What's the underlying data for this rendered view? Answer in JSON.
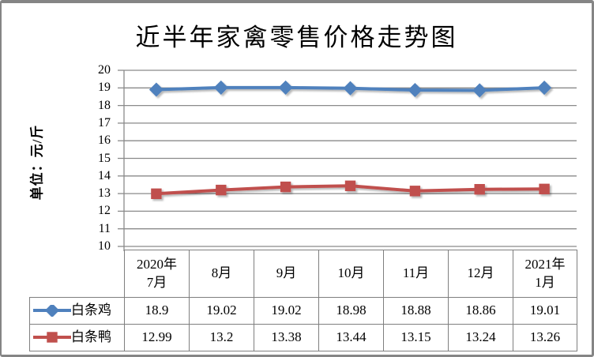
{
  "chart": {
    "title": "近半年家禽零售价格走势图",
    "y_axis_title": "单位：元/斤"
  },
  "chart_data": {
    "type": "line",
    "title": "近半年家禽零售价格走势图",
    "ylabel": "单位：元/斤",
    "xlabel": "",
    "categories": [
      "2020年\n7月",
      "8月",
      "9月",
      "10月",
      "11月",
      "12月",
      "2021年\n1月"
    ],
    "series": [
      {
        "name": "白条鸡",
        "marker": "diamond",
        "color": "#4F81BD",
        "values": [
          18.9,
          19.02,
          19.02,
          18.98,
          18.88,
          18.86,
          19.01
        ]
      },
      {
        "name": "白条鸭",
        "marker": "square",
        "color": "#C0504D",
        "values": [
          12.99,
          13.2,
          13.38,
          13.44,
          13.15,
          13.24,
          13.26
        ]
      }
    ],
    "ylim": [
      10,
      20
    ],
    "y_tick_step": 1,
    "y_tick_labels": [
      "10",
      "11",
      "12",
      "13",
      "14",
      "15",
      "16",
      "17",
      "18",
      "19",
      "20"
    ],
    "grid": true,
    "gridline_color": "#8a8a8a",
    "axis_color": "#8a8a8a",
    "table_border_color": "#7f7f7f",
    "legend_position": "table-left"
  }
}
